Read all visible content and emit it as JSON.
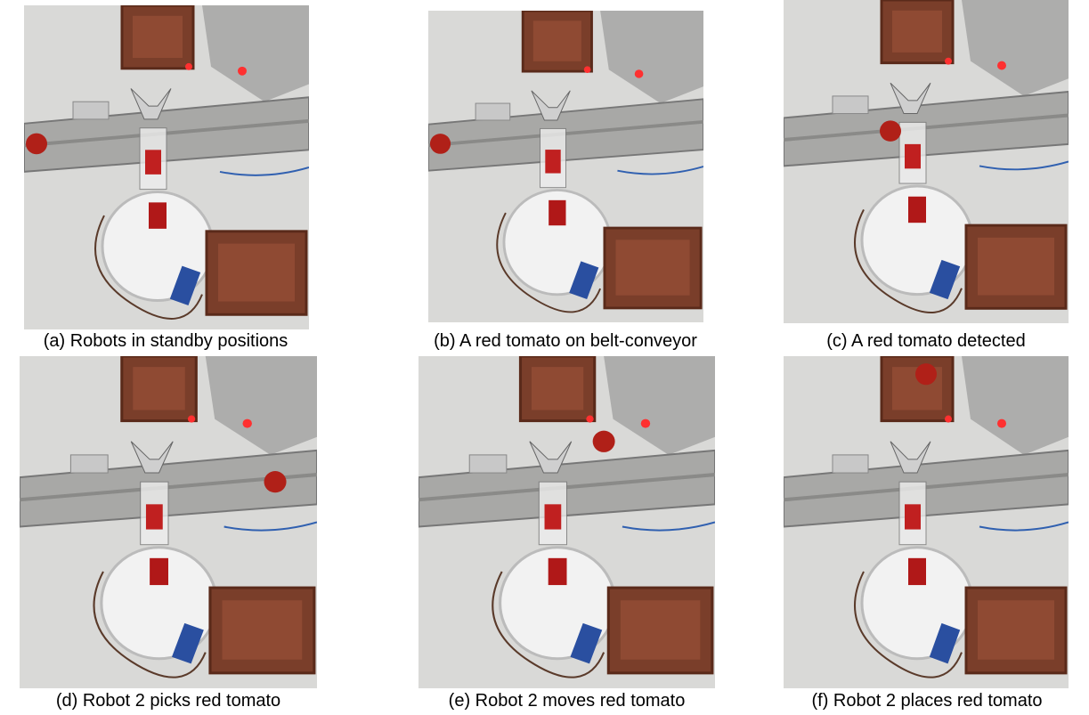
{
  "figure": {
    "panels": [
      {
        "caption": "(a) Robots in standby positions"
      },
      {
        "caption": "(b) A red tomato on belt-conveyor"
      },
      {
        "caption": "(c) A red tomato detected"
      },
      {
        "caption": "(d) Robot 2 picks red tomato"
      },
      {
        "caption": "(e) Robot 2 moves red tomato"
      },
      {
        "caption": "(f) Robot 2 places red tomato"
      }
    ]
  }
}
